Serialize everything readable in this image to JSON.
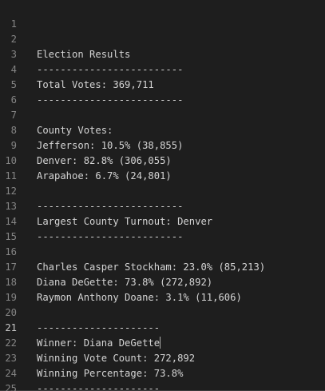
{
  "editor": {
    "active_line": 21,
    "lines": [
      {
        "num": "1",
        "text": ""
      },
      {
        "num": "2",
        "text": "Election Results"
      },
      {
        "num": "3",
        "text": "-------------------------"
      },
      {
        "num": "4",
        "text": "Total Votes: 369,711"
      },
      {
        "num": "5",
        "text": "-------------------------"
      },
      {
        "num": "6",
        "text": ""
      },
      {
        "num": "7",
        "text": "County Votes:"
      },
      {
        "num": "8",
        "text": "Jefferson: 10.5% (38,855)"
      },
      {
        "num": "9",
        "text": "Denver: 82.8% (306,055)"
      },
      {
        "num": "10",
        "text": "Arapahoe: 6.7% (24,801)"
      },
      {
        "num": "11",
        "text": ""
      },
      {
        "num": "12",
        "text": "-------------------------"
      },
      {
        "num": "13",
        "text": "Largest County Turnout: Denver"
      },
      {
        "num": "14",
        "text": "-------------------------"
      },
      {
        "num": "15",
        "text": ""
      },
      {
        "num": "16",
        "text": "Charles Casper Stockham: 23.0% (85,213)"
      },
      {
        "num": "17",
        "text": "Diana DeGette: 73.8% (272,892)"
      },
      {
        "num": "18",
        "text": "Raymon Anthony Doane: 3.1% (11,606)"
      },
      {
        "num": "19",
        "text": ""
      },
      {
        "num": "20",
        "text": "---------------------"
      },
      {
        "num": "21",
        "text": "Winner: Diana DeGette"
      },
      {
        "num": "22",
        "text": "Winning Vote Count: 272,892"
      },
      {
        "num": "23",
        "text": "Winning Percentage: 73.8%"
      },
      {
        "num": "24",
        "text": "---------------------"
      },
      {
        "num": "25",
        "text": ""
      }
    ]
  }
}
